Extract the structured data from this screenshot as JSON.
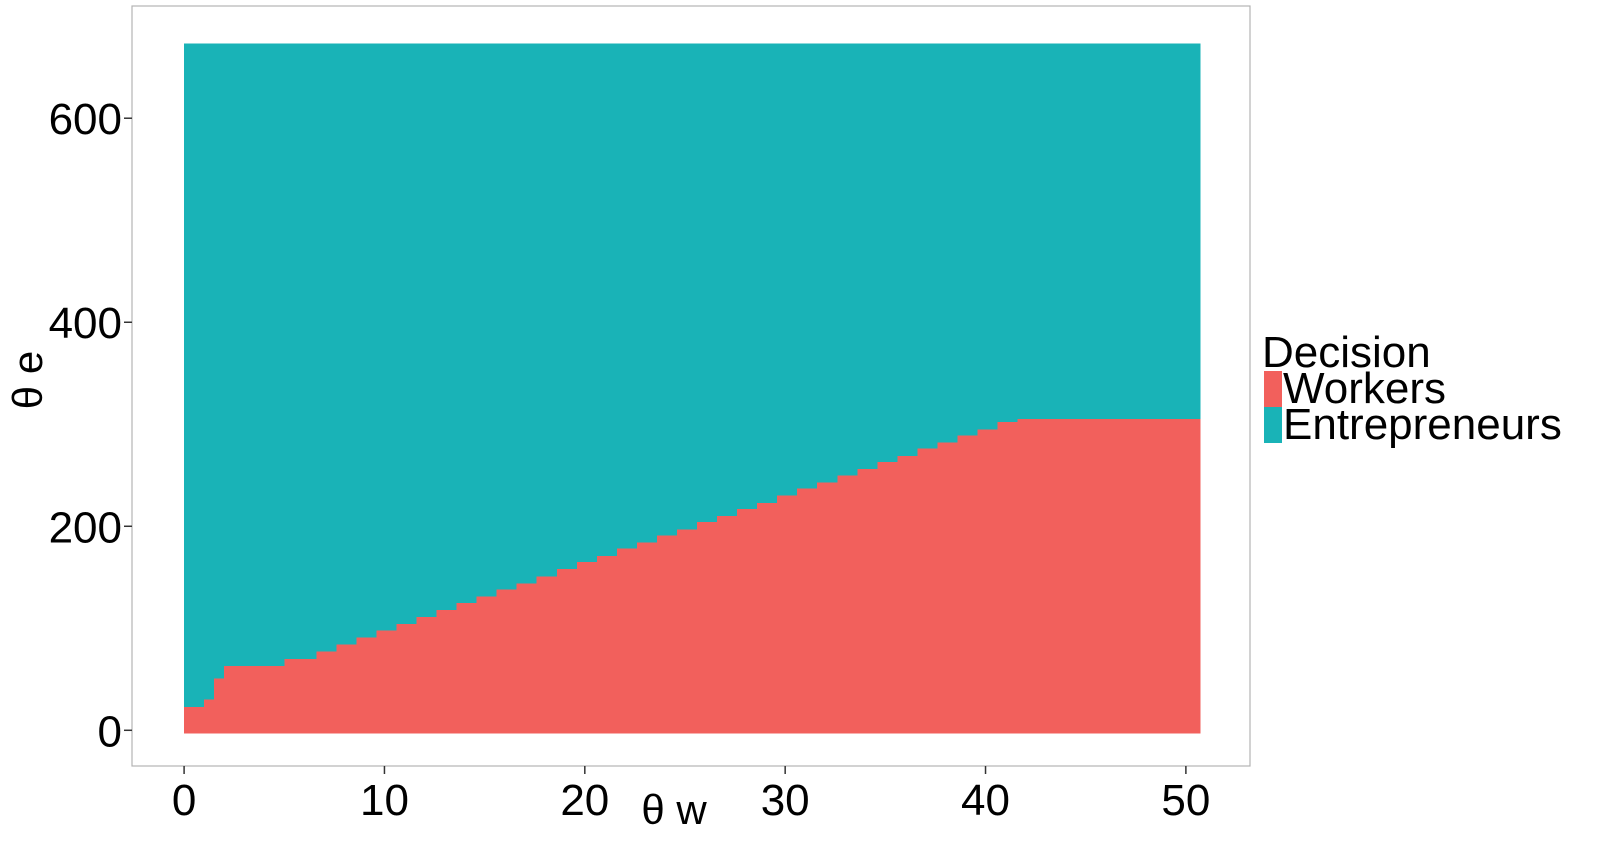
{
  "chart_data": {
    "type": "heatmap",
    "title": "",
    "xlabel": "θ w",
    "ylabel": "θ e",
    "xlim": [
      -2.6,
      53.2
    ],
    "ylim": [
      -35,
      710
    ],
    "x_ticks": [
      0,
      10,
      20,
      30,
      40,
      50
    ],
    "x_tick_labels": [
      "0",
      "10",
      "20",
      "30",
      "40",
      "50"
    ],
    "y_ticks": [
      0,
      200,
      400,
      600
    ],
    "y_tick_labels": [
      "0",
      "200",
      "400",
      "600"
    ],
    "grid": false,
    "panel_border": true,
    "legend": {
      "title": "Decision",
      "placement": "right",
      "entries": [
        {
          "label": "Workers",
          "color": "#F2605C"
        },
        {
          "label": "Entrepreneurs",
          "color": "#19B3B7"
        }
      ]
    },
    "domain": {
      "x": [
        0,
        50.7
      ],
      "y": [
        -3,
        673
      ]
    },
    "boundary_series": {
      "name": "Workers",
      "description_note": "",
      "x_start": [
        0,
        1,
        1.5,
        2,
        5,
        6.6,
        7.6,
        8.6,
        9.6,
        10.6,
        11.6,
        12.6,
        13.6,
        14.6,
        15.6,
        16.6,
        17.6,
        18.6,
        19.6,
        20.6,
        21.6,
        22.6,
        23.6,
        24.6,
        25.6,
        26.6,
        27.6,
        28.6,
        29.6,
        30.6,
        31.6,
        32.6,
        33.6,
        34.6,
        35.6,
        36.6,
        37.6,
        38.6,
        39.6,
        40.6,
        41.6,
        42.6,
        43.6,
        44.6,
        45.6,
        46.6,
        47.6,
        48.6,
        49.6
      ],
      "x_end": [
        1,
        1.5,
        2,
        5,
        6.6,
        7.6,
        8.6,
        9.6,
        10.6,
        11.6,
        12.6,
        13.6,
        14.6,
        15.6,
        16.6,
        17.6,
        18.6,
        19.6,
        20.6,
        21.6,
        22.6,
        23.6,
        24.6,
        25.6,
        26.6,
        27.6,
        28.6,
        29.6,
        30.6,
        31.6,
        32.6,
        33.6,
        34.6,
        35.6,
        36.6,
        37.6,
        38.6,
        39.6,
        40.6,
        41.6,
        42.6,
        43.6,
        44.6,
        45.6,
        46.6,
        47.6,
        48.6,
        49.6,
        50.7
      ],
      "threshold": [
        23,
        30,
        51,
        63,
        70,
        77,
        84,
        91,
        98,
        104,
        111,
        118,
        125,
        131,
        138,
        144,
        151,
        158,
        165,
        171,
        178,
        184,
        191,
        197,
        204,
        210,
        217,
        223,
        230,
        237,
        243,
        250,
        256,
        263,
        269,
        276,
        282,
        289,
        295,
        302,
        305,
        305,
        305,
        305,
        305,
        305,
        305,
        305,
        305
      ]
    }
  }
}
